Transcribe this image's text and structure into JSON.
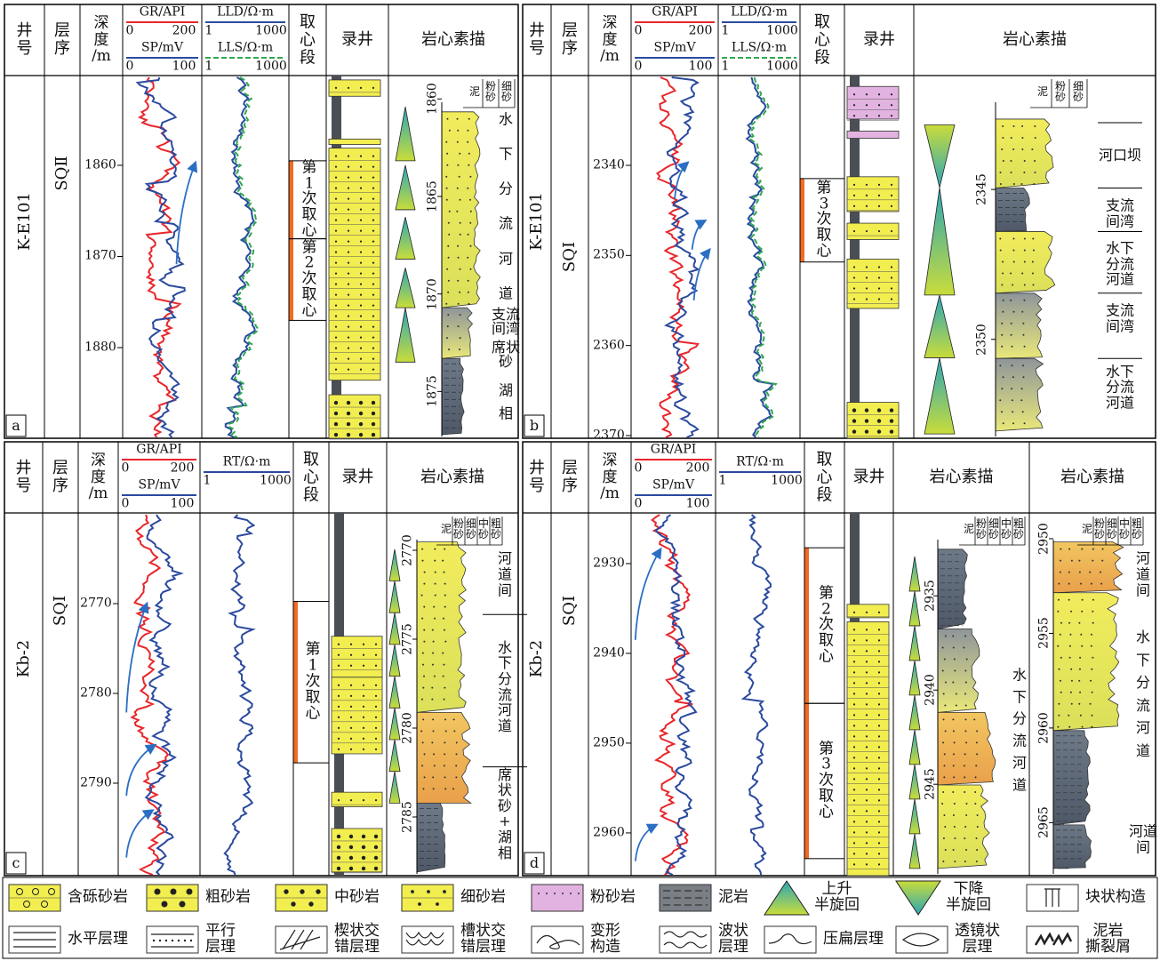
{
  "panels": [
    {
      "label": "a",
      "well": "K-E101",
      "sequence": "SQⅡ",
      "headers": {
        "well": "井\n号",
        "sequence": "层\n序",
        "depth": "深\n度\n/m",
        "coring": "取\n心\n段",
        "mudlog": "录井"
      },
      "logs": [
        {
          "name": "GR/API",
          "min": 0,
          "max": 200,
          "color": "#e8262b"
        },
        {
          "name": "SP/mV",
          "min": 0,
          "max": 100,
          "color": "#2b4a9e"
        }
      ],
      "resistivity": [
        {
          "name": "LLD/Ω·m",
          "min": 1,
          "max": 1000,
          "color": "#2b4a9e"
        },
        {
          "name": "LLS/Ω·m",
          "min": 1,
          "max": 1000,
          "color": "#2fa84f",
          "dashed": true
        }
      ],
      "depth_lim": [
        1850.15,
        1889.95
      ],
      "depth_ticks": [
        1860,
        1870,
        1880
      ],
      "cores": [
        "第\n1\n次\n取\n心",
        "第\n2\n次\n取\n心"
      ],
      "sketches": [
        {
          "title": "岩心素描",
          "lim": [
            1858.8,
            1877.4
          ],
          "ticks": [
            1860,
            1865,
            1870,
            1875
          ],
          "grain": [
            "泥",
            "粉\n砂",
            "细\n砂"
          ],
          "facies": [
            "水\n下\n分\n流\n河\n道",
            "支流\n间湾",
            "席状\n砂",
            "湖\n相"
          ]
        }
      ]
    },
    {
      "label": "b",
      "well": "K-E101",
      "sequence": "SQⅠ",
      "headers": {
        "well": "井\n号",
        "sequence": "层\n序",
        "depth": "深\n度\n/m",
        "coring": "取\n心\n段",
        "mudlog": "录井"
      },
      "logs": [
        {
          "name": "GR/API",
          "min": 0,
          "max": 200,
          "color": "#e8262b"
        },
        {
          "name": "SP/mV",
          "min": 0,
          "max": 100,
          "color": "#2b4a9e"
        }
      ],
      "resistivity": [
        {
          "name": "LLD/Ω·m",
          "min": 1,
          "max": 1000,
          "color": "#2b4a9e"
        },
        {
          "name": "LLS/Ω·m",
          "min": 1,
          "max": 1000,
          "color": "#2fa84f",
          "dashed": true
        }
      ],
      "depth_lim": [
        2330.03,
        2370.3
      ],
      "depth_ticks": [
        2340,
        2350,
        2360,
        2370
      ],
      "cores": [
        "第\n3\n次\n取\n心"
      ],
      "sketches": [
        {
          "title": "岩心素描",
          "lim": [
            2341.2,
            2353.3
          ],
          "ticks": [
            2345,
            2350
          ],
          "grain": [
            "泥",
            "粉\n砂",
            "细\n砂"
          ],
          "facies": [
            "河口坝",
            "支流\n间湾",
            "水下\n分流\n河道",
            "支流\n间湾",
            "水下\n分流\n河道"
          ]
        }
      ]
    },
    {
      "label": "c",
      "well": "Kb-2",
      "sequence": "SQⅠ",
      "headers": {
        "well": "井\n号",
        "sequence": "层\n序",
        "depth": "深\n度\n/m",
        "coring": "取\n心\n段",
        "mudlog": "录井"
      },
      "logs": [
        {
          "name": "GR/API",
          "min": 0,
          "max": 200,
          "color": "#e8262b"
        },
        {
          "name": "SP/mV",
          "min": 0,
          "max": 100,
          "color": "#2b4a9e"
        }
      ],
      "resistivity": [
        {
          "name": "RT/Ω·m",
          "min": 1,
          "max": 1000,
          "color": "#2b4a9e"
        }
      ],
      "depth_lim": [
        2759.9,
        2800.3
      ],
      "depth_ticks": [
        2770,
        2780,
        2790
      ],
      "cores": [
        "第\n1\n次\n取\n心"
      ],
      "sketches": [
        {
          "title": "岩心素描",
          "lim": [
            2767.9,
            2788.3
          ],
          "ticks": [
            2770,
            2775,
            2780,
            2785
          ],
          "grain": [
            "泥",
            "粉\n砂",
            "细\n砂",
            "中\n砂",
            "粗\n砂"
          ],
          "facies": [
            "河\n道\n间",
            "水\n下\n分\n流\n河\n道",
            "席\n状\n砂\n+\n湖\n相"
          ]
        }
      ]
    },
    {
      "label": "d",
      "well": "Kb-2",
      "sequence": "SQⅠ",
      "headers": {
        "well": "井\n号",
        "sequence": "层\n序",
        "depth": "深\n度\n/m",
        "coring": "取\n心\n段",
        "mudlog": "录井"
      },
      "logs": [
        {
          "name": "GR/API",
          "min": 0,
          "max": 200,
          "color": "#e8262b"
        },
        {
          "name": "SP/mV",
          "min": 0,
          "max": 100,
          "color": "#2b4a9e"
        }
      ],
      "resistivity": [
        {
          "name": "RT/Ω·m",
          "min": 1,
          "max": 1000,
          "color": "#2b4a9e"
        }
      ],
      "depth_lim": [
        2924.36,
        2964.76
      ],
      "depth_ticks": [
        2930,
        2940,
        2950,
        2960
      ],
      "cores": [
        "第\n2\n次\n取\n心",
        "第\n3\n次\n取\n心"
      ],
      "sketches": [
        {
          "title": "岩心素描",
          "lim": [
            2930.6,
            2949.85
          ],
          "ticks": [
            2935,
            2940,
            2945
          ],
          "grain": [
            "泥",
            "粉\n砂",
            "细\n砂",
            "中\n砂",
            "粗\n砂"
          ],
          "facies": [
            "水\n下\n分\n流\n河\n道"
          ]
        },
        {
          "title": "岩心素描",
          "lim": [
            2948.64,
            2967.8
          ],
          "ticks": [
            2950,
            2955,
            2960,
            2965
          ],
          "grain": [
            "泥",
            "粉\n砂",
            "细\n砂",
            "中\n砂",
            "粗\n砂"
          ],
          "facies": [
            "河\n道\n间",
            "水\n下\n分\n流\n河\n道",
            "河道\n间"
          ]
        }
      ]
    }
  ],
  "legend": [
    "含砾砂岩",
    "粗砂岩",
    "中砂岩",
    "细砂岩",
    "粉砂岩",
    "泥岩",
    "上升\n半旋回",
    "下降\n半旋回",
    "块状构造",
    "水平层理",
    "平行\n层理",
    "楔状交\n错层理",
    "槽状交\n错层理",
    "变形\n构造",
    "波状\n层理",
    "压扁层理",
    "透镜状\n层理",
    "泥岩\n撕裂屑"
  ]
}
